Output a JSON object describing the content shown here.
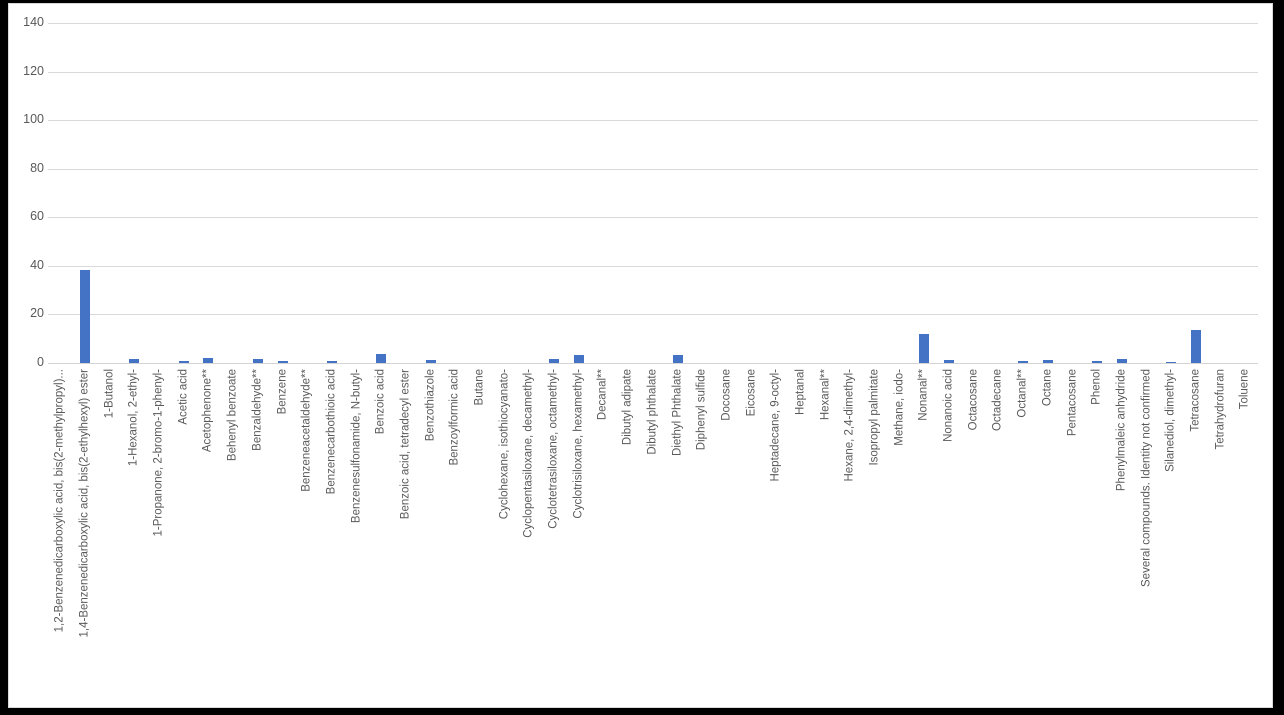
{
  "chart_data": {
    "type": "bar",
    "title": "",
    "xlabel": "",
    "ylabel": "",
    "ylim": [
      0,
      140
    ],
    "yticks": [
      0,
      20,
      40,
      60,
      80,
      100,
      120,
      140
    ],
    "grid": true,
    "legend": "none",
    "bar_color": "#4472C4",
    "axis_text_color": "#595959",
    "gridline_color": "#D9D9D9",
    "categories": [
      "1,2-Benzenedicarboxylic acid, bis(2-methylpropyl)...",
      "1,4-Benzenedicarboxylic acid, bis(2-ethylhexyl) ester",
      "1-Butanol",
      "1-Hexanol, 2-ethyl-",
      "1-Propanone, 2-bromo-1-phenyl-",
      "Acetic acid",
      "Acetophenone**",
      "Behenyl benzoate",
      "Benzaldehyde**",
      "Benzene",
      "Benzeneacetaldehyde**",
      "Benzenecarbothioic acid",
      "Benzenesulfonamide, N-butyl-",
      "Benzoic acid",
      "Benzoic acid, tetradecyl ester",
      "Benzothiazole",
      "Benzoylformic acid",
      "Butane",
      "Cyclohexane, isothiocyanato-",
      "Cyclopentasiloxane, decamethyl-",
      "Cyclotetrasiloxane, octamethyl-",
      "Cyclotrisiloxane, hexamethyl-",
      "Decanal**",
      "Dibutyl adipate",
      "Dibutyl phthalate",
      "Diethyl Phthalate",
      "Diphenyl sulfide",
      "Docosane",
      "Eicosane",
      "Heptadecane, 9-octyl-",
      "Heptanal",
      "Hexanal**",
      "Hexane, 2,4-dimethyl-",
      "Isopropyl palmitate",
      "Methane, iodo-",
      "Nonanal**",
      "Nonanoic acid",
      "Octacosane",
      "Octadecane",
      "Octanal**",
      "Octane",
      "Pentacosane",
      "Phenol",
      "Phenylmaleic anhydride",
      "Several compounds. Identity not confirmed",
      "Silanediol, dimethyl-",
      "Tetracosane",
      "Tetrahydrofuran",
      "Toluene"
    ],
    "values": [
      0,
      38.5,
      0,
      1.6,
      0,
      0.8,
      1.9,
      0,
      1.8,
      0.8,
      0,
      0.8,
      0,
      3.8,
      0,
      1.1,
      0,
      0,
      0,
      0,
      1.6,
      3.4,
      0,
      0,
      0,
      3.4,
      0,
      0,
      0,
      0,
      0,
      0,
      0,
      0,
      0,
      12,
      1.1,
      0,
      0,
      1.0,
      1.2,
      0,
      0.7,
      1.6,
      0,
      0.6,
      13.5,
      0,
      0
    ]
  }
}
